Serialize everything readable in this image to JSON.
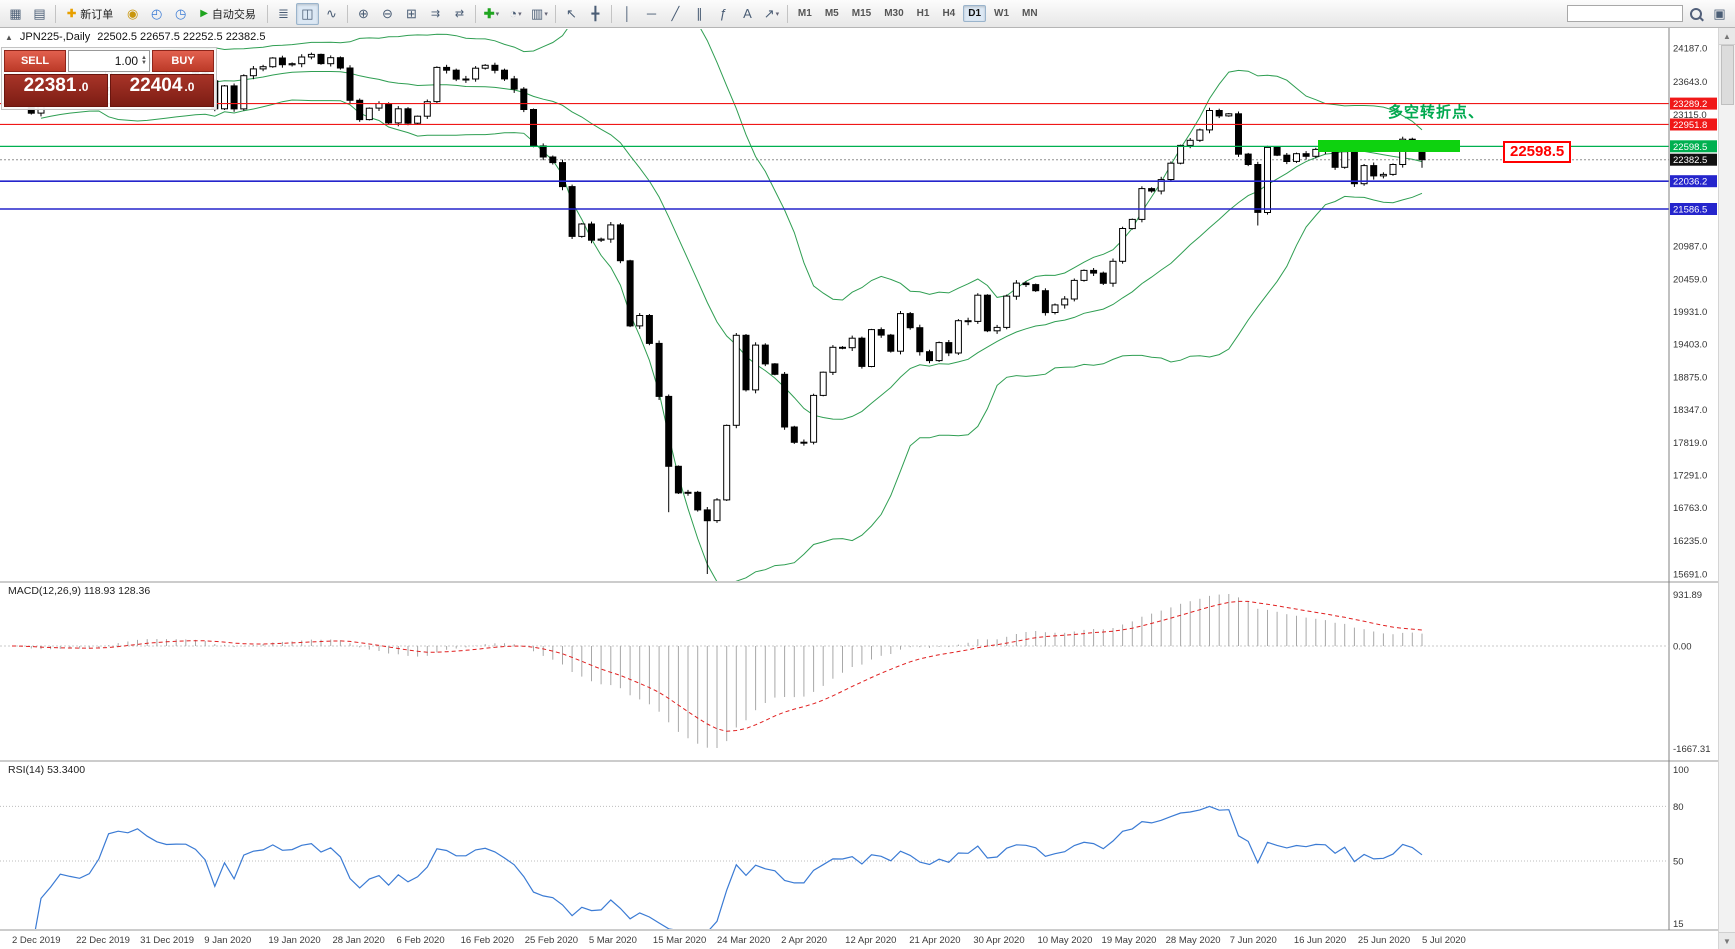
{
  "toolbar": {
    "new_order_label": "新订单",
    "autotrading_label": "自动交易",
    "timeframes": [
      "M1",
      "M5",
      "M15",
      "M30",
      "H1",
      "H4",
      "D1",
      "W1",
      "MN"
    ],
    "active_timeframe": "D1"
  },
  "chart_header": {
    "collapse_icon": "▲",
    "symbol_period": "JPN225-,Daily",
    "ohlc": "22502.5 22657.5 22252.5 22382.5"
  },
  "trade_panel": {
    "sell_label": "SELL",
    "buy_label": "BUY",
    "volume": "1.00",
    "sell_price_main": "22381",
    "sell_price_dec": ".0",
    "buy_price_main": "22404",
    "buy_price_dec": ".0"
  },
  "annotations": {
    "turning_point_text": "多空转折点、",
    "turning_point_color": "#00a94f",
    "price_tag": "22598.5",
    "price_tag_color": "#ff0000",
    "highlight_color": "#0ed20f"
  },
  "macd_panel": {
    "label": "MACD(12,26,9) 118.93 128.36",
    "axis": [
      "931.89",
      "0.00",
      "-1667.31"
    ]
  },
  "rsi_panel": {
    "label": "RSI(14) 53.3400",
    "axis": [
      "100",
      "80",
      "50",
      "15"
    ]
  },
  "chart_data": {
    "type": "candlestick",
    "title": "JPN225-,Daily",
    "last_ohlc": [
      22502.5,
      22657.5,
      22252.5,
      22382.5
    ],
    "closes": [
      23530,
      23380,
      23135,
      23300,
      23354,
      23430,
      23410,
      23392,
      23424,
      23550,
      23900,
      23952,
      23934,
      24023,
      23934,
      23864,
      23830,
      23838,
      23837,
      23782,
      23657,
      23205,
      23575,
      23204,
      23740,
      23850,
      23885,
      24025,
      23916,
      23933,
      24041,
      24083,
      23934,
      24031,
      23864,
      23343,
      23031,
      23215,
      23290,
      22977,
      23205,
      22972,
      23085,
      23320,
      23873,
      23828,
      23685,
      23686,
      23861,
      23908,
      23828,
      23688,
      23523,
      23193,
      22605,
      22426,
      22336,
      21948,
      21143,
      21344,
      21083,
      21100,
      21329,
      20750,
      19699,
      19867,
      19416,
      18560,
      17431,
      17002,
      17011,
      16727,
      16553,
      16888,
      18092,
      19546,
      18665,
      19389,
      19085,
      18917,
      18065,
      17818,
      17820,
      18576,
      18950,
      19353,
      19346,
      19499,
      19043,
      19639,
      19550,
      19290,
      19897,
      19669,
      19281,
      19138,
      19429,
      19262,
      19783,
      19771,
      20194,
      19619,
      19674,
      20179,
      20390,
      20366,
      20267,
      19914,
      20037,
      20133,
      20433,
      20595,
      20552,
      20388,
      20741,
      21271,
      21419,
      21916,
      21878,
      22062,
      22326,
      22614,
      22696,
      22864,
      23178,
      23091,
      23125,
      22473,
      22305,
      21531,
      22582,
      22456,
      22355,
      22479,
      22437,
      22549,
      22534,
      22260,
      22512,
      21995,
      22288,
      22122,
      22146,
      22306,
      22714,
      22615,
      22382.5
    ],
    "low_overrides": {
      "68": 16690,
      "72": 15691,
      "129": 21320
    },
    "hlines": [
      {
        "p": 23289.2,
        "c": "#f01818",
        "w": 1.1
      },
      {
        "p": 22951.8,
        "c": "#f01818",
        "w": 1.1
      },
      {
        "p": 22598.5,
        "c": "#00b050",
        "w": 1.3
      },
      {
        "p": 22036.2,
        "c": "#2525cc",
        "w": 1.6
      },
      {
        "p": 21586.5,
        "c": "#2525cc",
        "w": 1.6
      }
    ],
    "current_price": {
      "p": 22382.5,
      "c": "#111111",
      "line_color": "#909090"
    },
    "price_axis": [
      {
        "t": "24187.0",
        "p": 24187
      },
      {
        "t": "23643.0",
        "p": 23643
      },
      {
        "t": "23115.0",
        "p": 23115
      },
      {
        "t": "20987.0",
        "p": 20987
      },
      {
        "t": "20459.0",
        "p": 20459
      },
      {
        "t": "19931.0",
        "p": 19931
      },
      {
        "t": "19403.0",
        "p": 19403
      },
      {
        "t": "18875.0",
        "p": 18875
      },
      {
        "t": "18347.0",
        "p": 18347
      },
      {
        "t": "17819.0",
        "p": 17819
      },
      {
        "t": "17291.0",
        "p": 17291
      },
      {
        "t": "16763.0",
        "p": 16763
      },
      {
        "t": "16235.0",
        "p": 16235
      },
      {
        "t": "15691.0",
        "p": 15691
      }
    ],
    "tag_labels": [
      {
        "t": "23289.2",
        "p": 23289.2,
        "c": "#f01818"
      },
      {
        "t": "22951.8",
        "p": 22951.8,
        "c": "#f01818"
      },
      {
        "t": "22598.5",
        "p": 22598.5,
        "c": "#00b050"
      },
      {
        "t": "22382.5",
        "p": 22382.5,
        "c": "#111111"
      },
      {
        "t": "22036.2",
        "p": 22036.2,
        "c": "#2525cc"
      },
      {
        "t": "21586.5",
        "p": 21586.5,
        "c": "#2525cc"
      }
    ],
    "x_labels": [
      "2 Dec 2019",
      "22 Dec 2019",
      "31 Dec 2019",
      "9 Jan 2020",
      "19 Jan 2020",
      "28 Jan 2020",
      "6 Feb 2020",
      "16 Feb 2020",
      "25 Feb 2020",
      "5 Mar 2020",
      "15 Mar 2020",
      "24 Mar 2020",
      "2 Apr 2020",
      "12 Apr 2020",
      "21 Apr 2020",
      "30 Apr 2020",
      "10 May 2020",
      "19 May 2020",
      "28 May 2020",
      "7 Jun 2020",
      "16 Jun 2020",
      "25 Jun 2020",
      "5 Jul 2020"
    ],
    "indicators": {
      "bollinger": {
        "period": 20,
        "deviation": 2,
        "color": "#2f9e52"
      },
      "macd": {
        "fast": 12,
        "slow": 26,
        "signal": 9,
        "hist_color": "#a8a8a8",
        "signal_color": "#e02020"
      },
      "rsi": {
        "period": 14,
        "color": "#3b7bd4",
        "levels": [
          80,
          50
        ]
      }
    }
  }
}
